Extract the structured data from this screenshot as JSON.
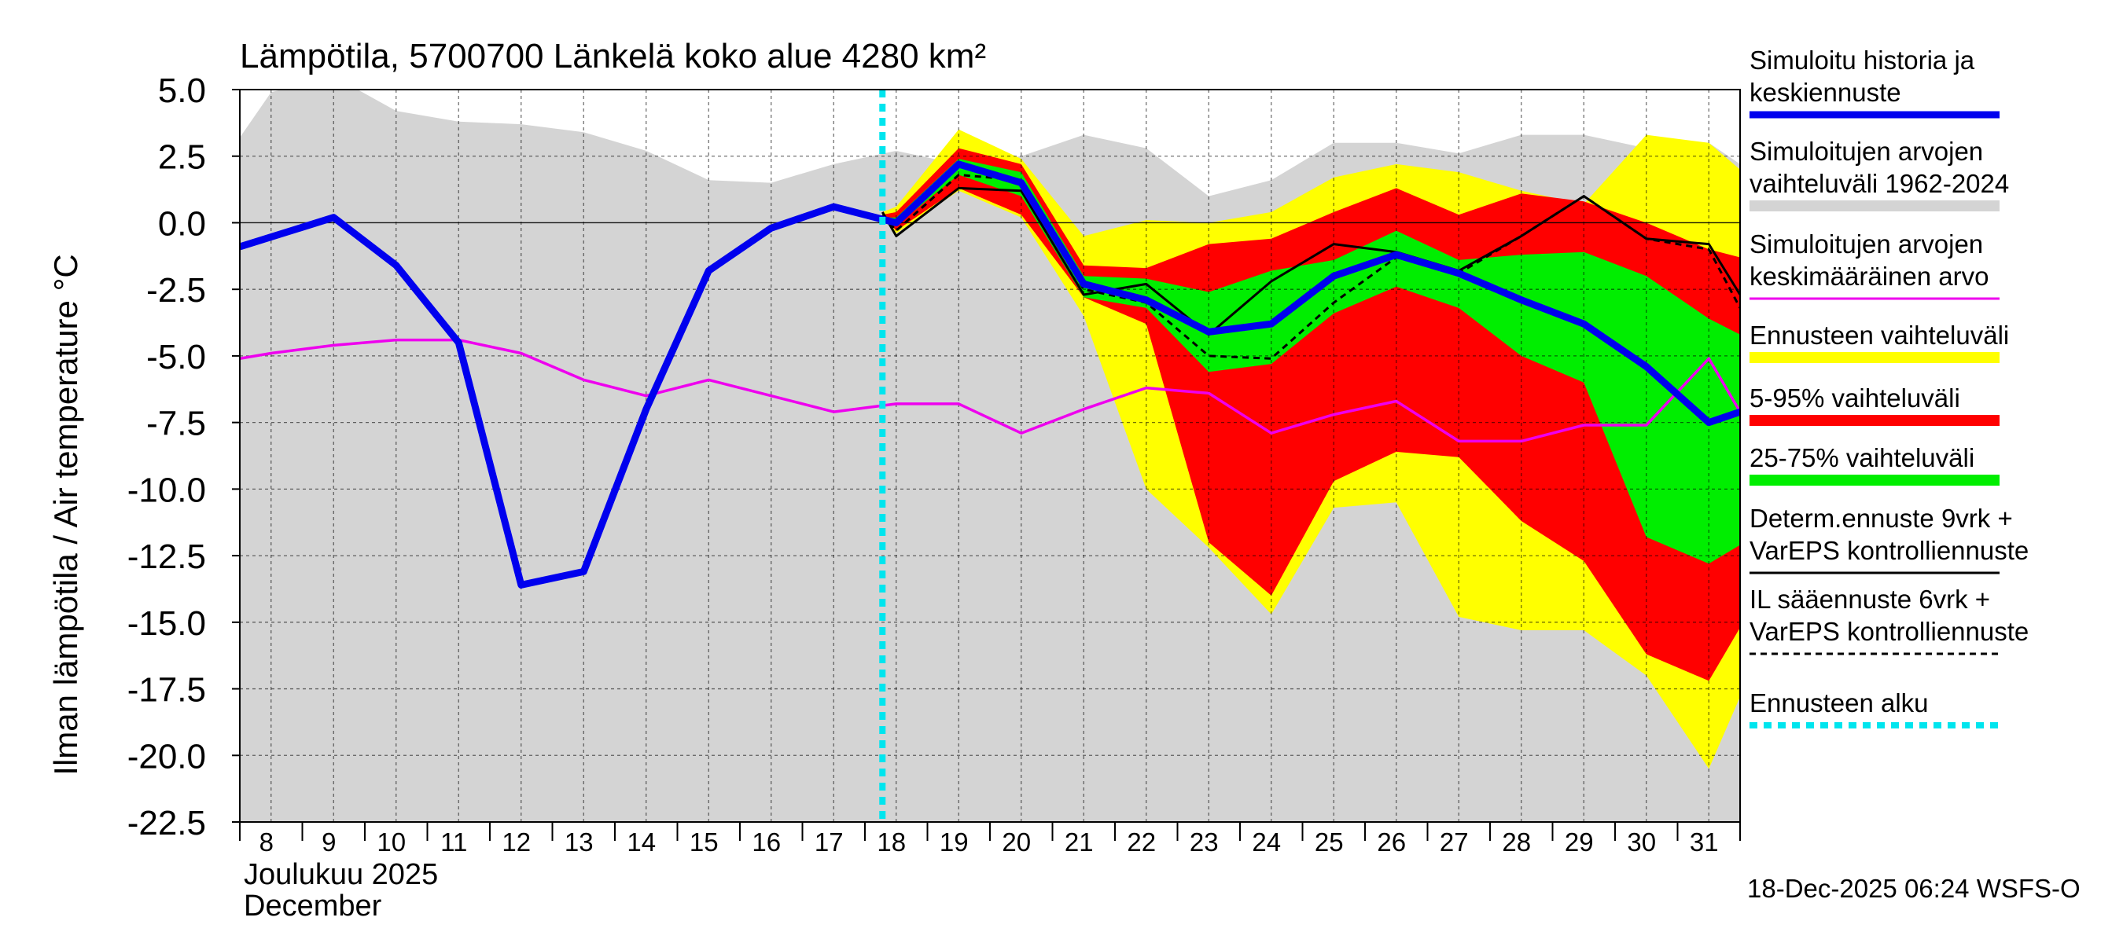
{
  "chart_data": {
    "type": "line",
    "title": "Lämpötila, 5700700 Länkelä koko alue 4280 km²",
    "ylabel": "Ilman lämpötila / Air temperature   °C",
    "xlabel_line1": "Joulukuu  2025",
    "xlabel_line2": "December",
    "timestamp": "18-Dec-2025 06:24 WSFS-O",
    "ylim": [
      -22.5,
      5.0
    ],
    "xlim": [
      7.5,
      31.5
    ],
    "yticks": [
      5.0,
      2.5,
      0.0,
      -2.5,
      -5.0,
      -7.5,
      -10.0,
      -12.5,
      -15.0,
      -17.5,
      -20.0,
      -22.5
    ],
    "ytick_labels": [
      "5.0",
      "2.5",
      "0.0",
      "-2.5",
      "-5.0",
      "-7.5",
      "-10.0",
      "-12.5",
      "-15.0",
      "-17.5",
      "-20.0",
      "-22.5"
    ],
    "xticks": [
      8,
      9,
      10,
      11,
      12,
      13,
      14,
      15,
      16,
      17,
      18,
      19,
      20,
      21,
      22,
      23,
      24,
      25,
      26,
      27,
      28,
      29,
      30,
      31
    ],
    "xtick_labels": [
      "8",
      "9",
      "10",
      "11",
      "12",
      "13",
      "14",
      "15",
      "16",
      "17",
      "18",
      "19",
      "20",
      "21",
      "22",
      "23",
      "24",
      "25",
      "26",
      "27",
      "28",
      "29",
      "30",
      "31"
    ],
    "forecast_start": 17.78,
    "legend": [
      {
        "label": "Simuloitu historia ja keskiennuste",
        "lines": [
          "Simuloitu historia ja",
          "keskiennuste"
        ],
        "color": "#0000ee",
        "style": "thick"
      },
      {
        "label": "Simuloitujen arvojen vaihteluväli 1962-2024",
        "lines": [
          "Simuloitujen arvojen",
          "vaihteluväli 1962-2024"
        ],
        "color": "#d4d4d4",
        "style": "band"
      },
      {
        "label": "Simuloitujen arvojen keskimääräinen arvo",
        "lines": [
          "Simuloitujen arvojen",
          "keskimääräinen arvo"
        ],
        "color": "#ee00ee",
        "style": "line"
      },
      {
        "label": "Ennusteen vaihteluväli",
        "lines": [
          "Ennusteen vaihteluväli"
        ],
        "color": "#ffff00",
        "style": "band"
      },
      {
        "label": "5-95% vaihteluväli",
        "lines": [
          "5-95% vaihteluväli"
        ],
        "color": "#ff0000",
        "style": "band"
      },
      {
        "label": "25-75% vaihteluväli",
        "lines": [
          "25-75% vaihteluväli"
        ],
        "color": "#00ee00",
        "style": "band"
      },
      {
        "label": "Determ.ennuste 9vrk + VarEPS kontrolliennuste",
        "lines": [
          "Determ.ennuste 9vrk +",
          "VarEPS kontrolliennuste"
        ],
        "color": "#000000",
        "style": "line"
      },
      {
        "label": "IL sääennuste 6vrk + VarEPS kontrolliennuste",
        "lines": [
          "IL sääennuste 6vrk  +",
          "VarEPS kontrolliennuste"
        ],
        "color": "#000000",
        "style": "dashed"
      },
      {
        "label": "Ennusteen alku",
        "lines": [
          "Ennusteen alku"
        ],
        "color": "#00e5ee",
        "style": "dotted"
      }
    ],
    "series": [
      {
        "name": "hist_range",
        "type": "band",
        "color": "#d4d4d4",
        "x": [
          7.5,
          8,
          9,
          10,
          11,
          12,
          13,
          14,
          15,
          16,
          17,
          18,
          19,
          20,
          21,
          22,
          23,
          24,
          25,
          26,
          27,
          28,
          29,
          30,
          31,
          31.5
        ],
        "upper": [
          3.2,
          4.9,
          5.5,
          4.2,
          3.8,
          3.7,
          3.4,
          2.7,
          1.6,
          1.5,
          2.2,
          2.7,
          2.2,
          2.5,
          3.3,
          2.8,
          1.0,
          1.6,
          3.0,
          3.0,
          2.6,
          3.3,
          3.3,
          2.8,
          3.0,
          2.2
        ],
        "lower": [
          -22.5,
          -22.5,
          -22.5,
          -22.5,
          -22.5,
          -22.5,
          -22.5,
          -22.5,
          -22.5,
          -22.5,
          -22.5,
          -22.5,
          -22.5,
          -22.5,
          -22.5,
          -22.5,
          -22.5,
          -22.5,
          -22.5,
          -22.5,
          -22.5,
          -22.5,
          -22.5,
          -22.5,
          -22.5,
          -22.5
        ]
      },
      {
        "name": "Ennusteen vaihteluväli",
        "type": "band",
        "color": "#ffff00",
        "x": [
          17.78,
          18,
          19,
          20,
          21,
          22,
          23,
          24,
          25,
          26,
          27,
          28,
          29,
          30,
          31,
          31.5
        ],
        "upper": [
          0.4,
          0.6,
          3.5,
          2.4,
          -0.5,
          0.1,
          0.0,
          0.4,
          1.7,
          2.2,
          1.9,
          1.2,
          0.7,
          3.3,
          3.0,
          2.0
        ],
        "lower": [
          0.4,
          -0.4,
          1.2,
          0.2,
          -3.5,
          -10.0,
          -12.2,
          -14.7,
          -10.7,
          -10.5,
          -14.8,
          -15.3,
          -15.3,
          -17.0,
          -20.5,
          -17.8
        ]
      },
      {
        "name": "5-95% vaihteluväli",
        "type": "band",
        "color": "#ff0000",
        "x": [
          17.78,
          18,
          19,
          20,
          21,
          22,
          23,
          24,
          25,
          26,
          27,
          28,
          29,
          30,
          31,
          31.5
        ],
        "upper": [
          0.3,
          0.4,
          2.8,
          2.2,
          -1.6,
          -1.7,
          -0.8,
          -0.6,
          0.4,
          1.3,
          0.3,
          1.1,
          0.8,
          0.0,
          -1.0,
          -1.3
        ],
        "lower": [
          0.3,
          -0.3,
          1.3,
          0.3,
          -2.8,
          -3.8,
          -12.0,
          -14.0,
          -9.7,
          -8.6,
          -8.8,
          -11.2,
          -12.7,
          -16.2,
          -17.2,
          -15.2
        ]
      },
      {
        "name": "25-75% vaihteluväli",
        "type": "band",
        "color": "#00ee00",
        "x": [
          17.78,
          18,
          19,
          20,
          21,
          22,
          23,
          24,
          25,
          26,
          27,
          28,
          29,
          30,
          31,
          31.5
        ],
        "upper": [
          0.2,
          0.2,
          2.4,
          1.9,
          -2.0,
          -2.1,
          -2.6,
          -1.8,
          -1.4,
          -0.3,
          -1.4,
          -1.2,
          -1.1,
          -2.0,
          -3.6,
          -4.2
        ],
        "lower": [
          0.2,
          -0.1,
          1.8,
          1.0,
          -2.8,
          -3.2,
          -5.6,
          -5.3,
          -3.4,
          -2.4,
          -3.2,
          -5.0,
          -6.0,
          -11.8,
          -12.8,
          -12.1
        ]
      },
      {
        "name": "Simuloitujen arvojen keskimääräinen arvo",
        "type": "line",
        "color": "#ee00ee",
        "x": [
          7.5,
          8,
          9,
          10,
          11,
          12,
          13,
          14,
          15,
          16,
          17,
          18,
          19,
          20,
          21,
          22,
          23,
          24,
          25,
          26,
          27,
          28,
          29,
          30,
          31,
          31.5
        ],
        "y": [
          -5.1,
          -4.9,
          -4.6,
          -4.4,
          -4.4,
          -4.9,
          -5.9,
          -6.5,
          -5.9,
          -6.5,
          -7.1,
          -6.8,
          -6.8,
          -7.9,
          -7.0,
          -6.2,
          -6.4,
          -7.9,
          -7.2,
          -6.7,
          -8.2,
          -8.2,
          -7.6,
          -7.6,
          -5.1,
          -7.1
        ]
      },
      {
        "name": "IL sääennuste 6vrk + VarEPS kontrolliennuste",
        "type": "line",
        "color": "#000000",
        "dash": true,
        "x": [
          17.78,
          18,
          19,
          20,
          21,
          22,
          23,
          24,
          25,
          26,
          27,
          28,
          29,
          30,
          31,
          31.5
        ],
        "y": [
          0.3,
          -0.3,
          1.8,
          1.6,
          -2.5,
          -3.0,
          -5.0,
          -5.1,
          -3.0,
          -1.3,
          -1.9,
          -0.5,
          1.0,
          -0.6,
          -1.0,
          -3.2
        ]
      },
      {
        "name": "Determ.ennuste 9vrk + VarEPS kontrolliennuste",
        "type": "line",
        "color": "#000000",
        "x": [
          17.78,
          18,
          19,
          20,
          21,
          22,
          23,
          24,
          25,
          26,
          27,
          28,
          29,
          30,
          31,
          31.5
        ],
        "y": [
          0.4,
          -0.5,
          1.3,
          1.2,
          -2.7,
          -2.3,
          -4.2,
          -2.2,
          -0.8,
          -1.1,
          -1.8,
          -0.5,
          1.0,
          -0.6,
          -0.8,
          -2.7
        ]
      },
      {
        "name": "Simuloitu historia ja keskiennuste",
        "type": "line",
        "color": "#0000ee",
        "thick": true,
        "x": [
          7.5,
          9,
          10,
          11,
          12,
          13,
          14,
          15,
          16,
          17,
          18,
          19,
          20,
          21,
          22,
          23,
          24,
          25,
          26,
          27,
          28,
          29,
          30,
          31,
          31.5
        ],
        "y": [
          -0.9,
          0.2,
          -1.6,
          -4.5,
          -13.6,
          -13.1,
          -7.0,
          -1.8,
          -0.2,
          0.6,
          0.0,
          2.2,
          1.5,
          -2.3,
          -2.9,
          -4.1,
          -3.8,
          -2.0,
          -1.2,
          -1.9,
          -2.9,
          -3.8,
          -5.4,
          -7.5,
          -7.1
        ]
      }
    ]
  }
}
